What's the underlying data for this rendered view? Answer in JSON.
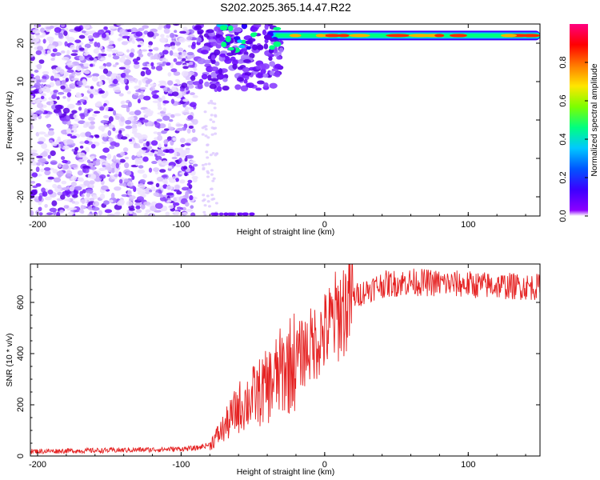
{
  "title": "S202.2025.365.14.47.R22",
  "colors": {
    "snr_line": "#e52222",
    "colorbar_stops": [
      "#8c00ff",
      "#3b00ff",
      "#0055ff",
      "#00c8ff",
      "#00ff80",
      "#7cff00",
      "#ffe600",
      "#ff7a00",
      "#ff0000",
      "#ff0080"
    ]
  },
  "chart_data": [
    {
      "type": "heatmap",
      "xlabel": "Height of straight line (km)",
      "ylabel": "Frequency (Hz)",
      "xlim": [
        -205,
        150
      ],
      "ylim": [
        -25,
        25
      ],
      "x_ticks": [
        "-200",
        "-100",
        "0",
        "100"
      ],
      "y_ticks": [
        "20",
        "10",
        "0",
        "-10",
        "-20"
      ],
      "description_values": {
        "noise_region_x": [
          -205,
          -90
        ],
        "strong_line_frequency_hz": 22,
        "strong_line_x_start": -40,
        "strong_line_x_end": 150
      },
      "colorbar": {
        "label": "Normalized spectral amplitude",
        "range": [
          0,
          1
        ],
        "ticks": [
          "0.0",
          "0.2",
          "0.4",
          "0.6",
          "0.8"
        ]
      }
    },
    {
      "type": "line",
      "xlabel": "Height of straight line (km)",
      "ylabel": "SNR (10 * v/v)",
      "xlim": [
        -205,
        150
      ],
      "ylim": [
        0,
        750
      ],
      "x_ticks": [
        "-200",
        "-100",
        "0",
        "100"
      ],
      "y_ticks": [
        "0",
        "200",
        "400",
        "600"
      ],
      "series": [
        {
          "x": [
            -205,
            -180,
            -150,
            -120,
            -100,
            -90,
            -80,
            -70,
            -60,
            -50,
            -40,
            -30,
            -20,
            -10,
            0,
            10,
            20,
            30,
            40,
            60,
            80,
            100,
            120,
            150
          ],
          "values": [
            18,
            20,
            22,
            25,
            28,
            30,
            45,
            110,
            190,
            230,
            270,
            330,
            380,
            430,
            480,
            560,
            620,
            650,
            670,
            680,
            675,
            670,
            665,
            660
          ]
        }
      ]
    }
  ]
}
